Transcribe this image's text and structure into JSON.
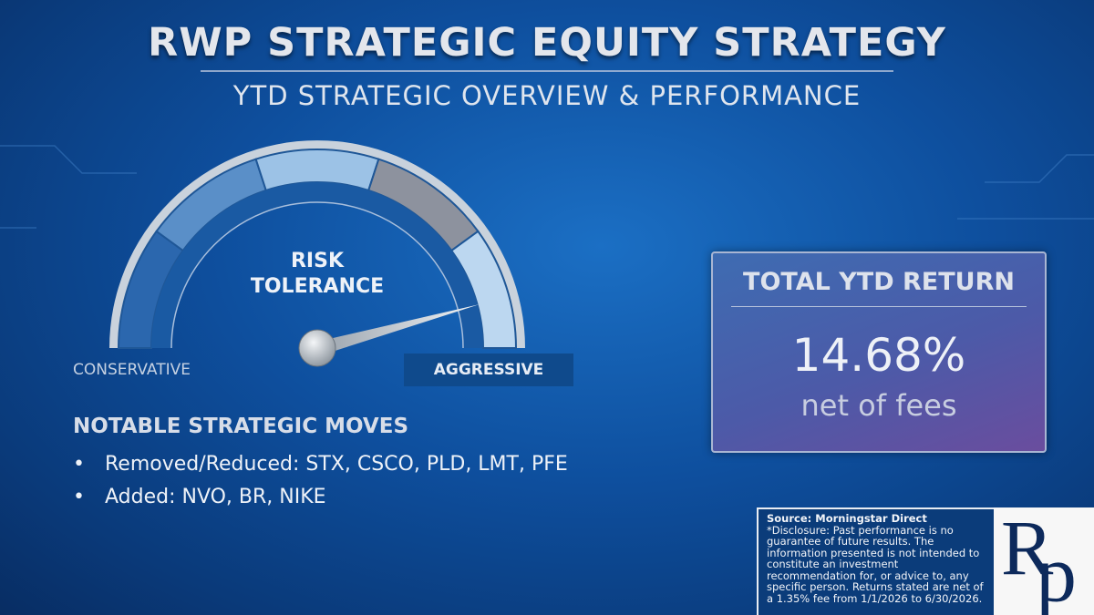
{
  "header": {
    "title": "RWP STRATEGIC EQUITY STRATEGY",
    "subtitle": "YTD STRATEGIC OVERVIEW & PERFORMANCE"
  },
  "gauge": {
    "label_lines": [
      "RISK",
      "TOLERANCE"
    ],
    "low_label": "CONSERVATIVE",
    "high_label": "AGGRESSIVE"
  },
  "moves": {
    "heading": "NOTABLE STRATEGIC MOVES",
    "items": [
      "Removed/Reduced: STX, CSCO, PLD, LMT, PFE",
      "Added: NVO, BR, NIKE"
    ]
  },
  "return_box": {
    "title": "TOTAL YTD RETURN",
    "value": "14.68%",
    "note": "net of fees"
  },
  "disclosure": {
    "source": "Source: Morningstar Direct",
    "text": "*Disclosure: Past performance is no guarantee of future results. The information presented is not intended to constitute an investment recommendation for, or advice to, any specific person. Returns stated are net of a 1.35% fee from 1/1/2026 to 6/30/2026."
  },
  "logo": {
    "letters": [
      "R",
      "p"
    ]
  }
}
